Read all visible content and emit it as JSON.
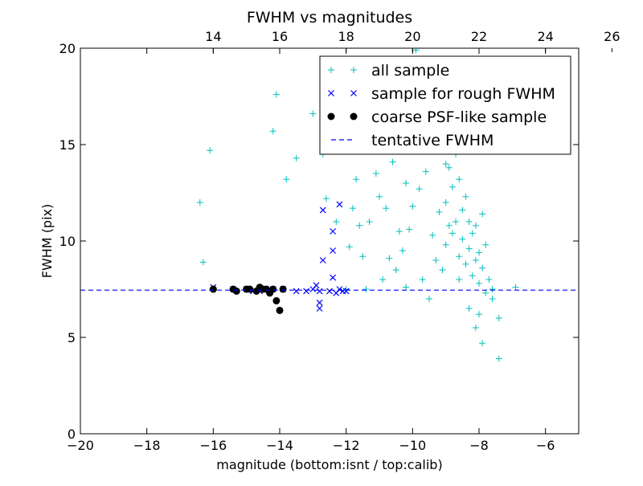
{
  "chart_data": {
    "type": "scatter",
    "title": "FWHM vs magnitudes",
    "xlabel": "magnitude (bottom:isnt / top:calib)",
    "ylabel": "FWHM (pix)",
    "xlim": [
      -20,
      -5
    ],
    "ylim": [
      0,
      20
    ],
    "x_ticks": [
      -20,
      -18,
      -16,
      -14,
      -12,
      -10,
      -8,
      -6
    ],
    "y_ticks": [
      0,
      5,
      10,
      15,
      20
    ],
    "top_axis": {
      "label": "calib",
      "offset_from_bottom": 30,
      "ticks": [
        14,
        16,
        18,
        20,
        22,
        24,
        26
      ]
    },
    "grid": false,
    "legend_position": "top-right",
    "colors": {
      "all_sample": "#00bfbf",
      "rough_sample": "#0000ff",
      "psf_sample": "#000000",
      "tentative_fwhm": "#0000ff"
    },
    "series": [
      {
        "name": "all sample",
        "marker": "+",
        "points": [
          [
            -16.4,
            12.0
          ],
          [
            -16.1,
            14.7
          ],
          [
            -16.3,
            8.9
          ],
          [
            -14.1,
            17.6
          ],
          [
            -14.2,
            15.7
          ],
          [
            -13.8,
            13.2
          ],
          [
            -13.5,
            14.3
          ],
          [
            -13.0,
            16.6
          ],
          [
            -12.6,
            12.2
          ],
          [
            -12.7,
            14.5
          ],
          [
            -11.8,
            11.7
          ],
          [
            -11.6,
            10.8
          ],
          [
            -11.9,
            9.7
          ],
          [
            -11.3,
            11.0
          ],
          [
            -11.0,
            12.3
          ],
          [
            -10.8,
            11.7
          ],
          [
            -11.1,
            13.5
          ],
          [
            -10.6,
            14.1
          ],
          [
            -10.4,
            10.5
          ],
          [
            -10.3,
            9.5
          ],
          [
            -10.1,
            10.6
          ],
          [
            -10.0,
            11.8
          ],
          [
            -9.8,
            12.7
          ],
          [
            -9.6,
            13.6
          ],
          [
            -9.4,
            10.3
          ],
          [
            -9.2,
            11.5
          ],
          [
            -9.1,
            8.5
          ],
          [
            -9.0,
            9.8
          ],
          [
            -8.9,
            10.8
          ],
          [
            -8.8,
            12.8
          ],
          [
            -8.7,
            11.0
          ],
          [
            -8.6,
            9.2
          ],
          [
            -8.6,
            13.2
          ],
          [
            -8.5,
            11.6
          ],
          [
            -8.5,
            10.1
          ],
          [
            -8.4,
            8.8
          ],
          [
            -8.4,
            12.3
          ],
          [
            -8.3,
            9.6
          ],
          [
            -8.3,
            11.0
          ],
          [
            -8.2,
            10.4
          ],
          [
            -8.2,
            8.2
          ],
          [
            -8.1,
            9.0
          ],
          [
            -8.1,
            10.8
          ],
          [
            -8.0,
            7.8
          ],
          [
            -8.0,
            9.4
          ],
          [
            -7.9,
            8.6
          ],
          [
            -7.8,
            7.3
          ],
          [
            -7.8,
            9.8
          ],
          [
            -7.7,
            8.0
          ],
          [
            -7.6,
            7.0
          ],
          [
            -7.9,
            11.4
          ],
          [
            -8.8,
            10.4
          ],
          [
            -9.3,
            9.0
          ],
          [
            -9.5,
            7.0
          ],
          [
            -9.7,
            8.0
          ],
          [
            -10.2,
            7.6
          ],
          [
            -10.5,
            8.5
          ],
          [
            -10.9,
            8.0
          ],
          [
            -11.4,
            7.5
          ],
          [
            -12.0,
            7.5
          ],
          [
            -8.3,
            6.5
          ],
          [
            -8.0,
            6.2
          ],
          [
            -8.1,
            5.5
          ],
          [
            -7.9,
            4.7
          ],
          [
            -7.4,
            3.9
          ],
          [
            -7.6,
            7.5
          ],
          [
            -6.9,
            7.6
          ],
          [
            -7.4,
            6.0
          ],
          [
            -9.0,
            14.0
          ],
          [
            -9.9,
            19.9
          ],
          [
            -9.6,
            15.6
          ],
          [
            -8.9,
            13.8
          ],
          [
            -8.7,
            14.5
          ],
          [
            -12.3,
            11.0
          ],
          [
            -11.7,
            13.2
          ],
          [
            -11.5,
            9.2
          ],
          [
            -10.7,
            9.1
          ],
          [
            -10.2,
            13.0
          ],
          [
            -9.0,
            12.0
          ],
          [
            -8.6,
            8.0
          ]
        ]
      },
      {
        "name": "sample for rough FWHM",
        "marker": "x",
        "points": [
          [
            -16.0,
            7.6
          ],
          [
            -15.4,
            7.5
          ],
          [
            -15.0,
            7.5
          ],
          [
            -14.6,
            7.4
          ],
          [
            -14.2,
            7.5
          ],
          [
            -13.5,
            7.4
          ],
          [
            -13.2,
            7.4
          ],
          [
            -13.0,
            7.5
          ],
          [
            -12.8,
            7.4
          ],
          [
            -12.5,
            7.4
          ],
          [
            -12.2,
            7.5
          ],
          [
            -12.0,
            7.4
          ],
          [
            -12.9,
            7.7
          ],
          [
            -12.8,
            6.8
          ],
          [
            -12.8,
            6.5
          ],
          [
            -12.7,
            9.0
          ],
          [
            -12.4,
            8.1
          ],
          [
            -12.4,
            9.5
          ],
          [
            -12.4,
            10.5
          ],
          [
            -12.7,
            11.6
          ],
          [
            -12.2,
            11.9
          ],
          [
            -12.3,
            7.3
          ],
          [
            -12.1,
            7.4
          ],
          [
            -13.9,
            7.5
          ],
          [
            -14.8,
            7.4
          ]
        ]
      },
      {
        "name": "coarse PSF-like sample",
        "marker": "o",
        "points": [
          [
            -16.0,
            7.5
          ],
          [
            -15.4,
            7.5
          ],
          [
            -15.3,
            7.4
          ],
          [
            -15.0,
            7.5
          ],
          [
            -14.9,
            7.5
          ],
          [
            -14.7,
            7.4
          ],
          [
            -14.5,
            7.5
          ],
          [
            -14.6,
            7.6
          ],
          [
            -14.4,
            7.5
          ],
          [
            -14.3,
            7.3
          ],
          [
            -14.2,
            7.5
          ],
          [
            -14.1,
            6.9
          ],
          [
            -14.0,
            6.4
          ],
          [
            -13.9,
            7.5
          ]
        ]
      },
      {
        "name": "tentative FWHM",
        "type": "hline",
        "y": 7.45
      }
    ]
  }
}
